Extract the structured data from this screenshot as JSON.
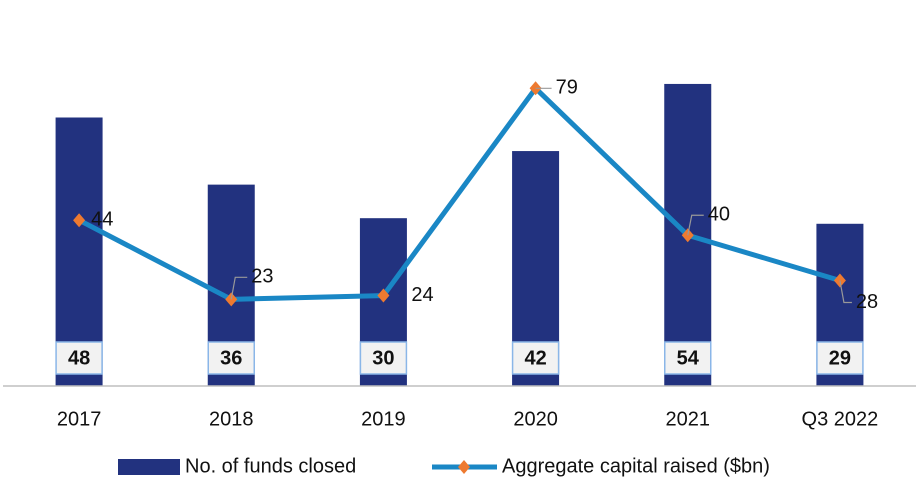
{
  "chart_data": {
    "type": "bar_line",
    "categories": [
      "2017",
      "2018",
      "2019",
      "2020",
      "2021",
      "Q3 2022"
    ],
    "series": [
      {
        "name": "No. of funds closed",
        "type": "bar",
        "color": "#22327f",
        "values": [
          48,
          36,
          30,
          42,
          54,
          29
        ]
      },
      {
        "name": "Aggregate capital raised ($bn)",
        "type": "line",
        "axis": "y2",
        "color": "#1a87c5",
        "marker_color": "#ee7a30",
        "values": [
          44,
          23,
          24,
          79,
          40,
          28
        ]
      }
    ],
    "ylim": [
      0,
      64
    ],
    "y2lim": [
      0,
      95
    ],
    "grid": false,
    "legend": "bottom"
  }
}
